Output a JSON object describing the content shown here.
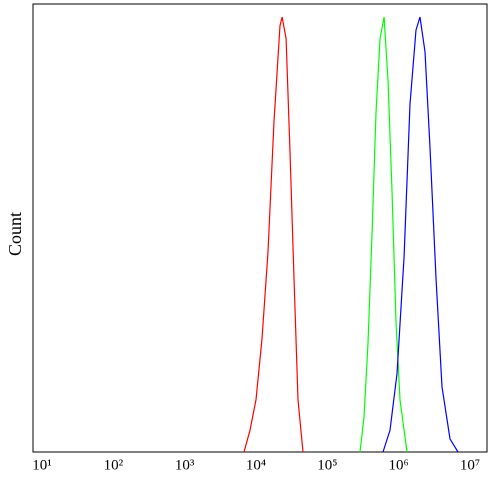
{
  "chart_data": {
    "type": "line",
    "ylabel": "Count",
    "xscale": "log",
    "xlim": [
      10,
      10000000
    ],
    "ylim": [
      0,
      100
    ],
    "xticks": [
      {
        "value": 10,
        "label": "10¹"
      },
      {
        "value": 100,
        "label": "10²"
      },
      {
        "value": 1000,
        "label": "10³"
      },
      {
        "value": 10000,
        "label": "10⁴"
      },
      {
        "value": 100000,
        "label": "10⁵"
      },
      {
        "value": 1000000,
        "label": "10⁶"
      },
      {
        "value": 10000000,
        "label": "10⁷"
      }
    ],
    "series": [
      {
        "color": "#ff0000",
        "x": [
          6790,
          8240,
          10000,
          12140,
          14730,
          17900,
          21700,
          23200,
          26400,
          30000,
          34100,
          38800,
          45600
        ],
        "values": [
          0,
          5,
          12,
          26,
          46,
          76,
          98,
          100,
          95,
          69,
          40,
          12,
          0
        ]
      },
      {
        "color": "#00ff00",
        "x": [
          287000,
          327000,
          372000,
          423000,
          481000,
          548000,
          624000,
          710000,
          807000,
          918000,
          1045000,
          1310000
        ],
        "values": [
          0,
          8,
          25,
          50,
          78,
          95,
          100,
          85,
          60,
          30,
          12,
          0
        ]
      },
      {
        "color": "#0000ff",
        "x": [
          604000,
          757000,
          949000,
          1190000,
          1440000,
          1750000,
          1990000,
          2340000,
          2750000,
          3340000,
          4050000,
          5250000,
          6790000
        ],
        "values": [
          0,
          5,
          18,
          45,
          80,
          97,
          100,
          92,
          70,
          40,
          15,
          3,
          0
        ]
      }
    ]
  }
}
